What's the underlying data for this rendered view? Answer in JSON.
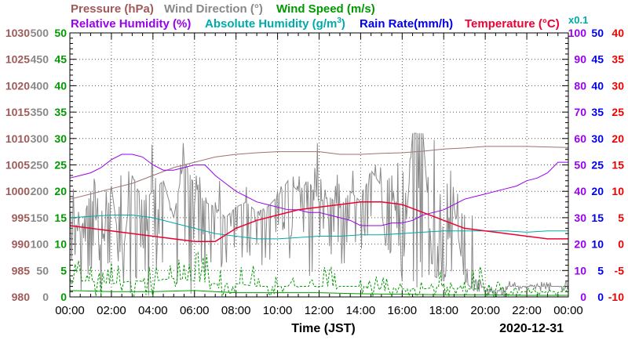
{
  "chart_data": {
    "type": "line",
    "x_axis": {
      "label": "Time (JST)",
      "date": "2020-12-31",
      "range_hours": [
        0,
        24
      ],
      "tick_labels": [
        "00:00",
        "02:00",
        "04:00",
        "06:00",
        "08:00",
        "10:00",
        "12:00",
        "14:00",
        "16:00",
        "18:00",
        "20:00",
        "22:00",
        "00:00"
      ],
      "minor_ticks_per_major": 4
    },
    "titles": {
      "pressure": "Pressure (hPa)",
      "wind_direction": "Wind Direction (°)",
      "wind_speed": "Wind Speed (m/s)",
      "humidity": "Relative Humidity (%)",
      "abs_humidity_prefix": "Absolute Humidity (g/m",
      "abs_humidity_sup": "3",
      "abs_humidity_suffix": ")",
      "rain": "Rain Rate(mm/h)",
      "temperature": "Temperature (°C)",
      "abs_scale_note": "x0.1"
    },
    "left_axes": [
      {
        "name": "Pressure",
        "unit": "hPa",
        "color": "#a05a5a",
        "range": [
          980,
          1030
        ],
        "tick_labels": [
          "980",
          "985",
          "990",
          "995",
          "1000",
          "1005",
          "1010",
          "1015",
          "1020",
          "1025",
          "1030"
        ]
      },
      {
        "name": "Wind Direction",
        "unit": "°",
        "color": "#888888",
        "range": [
          0,
          500
        ],
        "tick_labels": [
          "0",
          "50",
          "100",
          "150",
          "200",
          "250",
          "300",
          "350",
          "400",
          "450",
          "500"
        ]
      },
      {
        "name": "Wind Speed",
        "unit": "m/s",
        "color": "#009900",
        "range": [
          0,
          50
        ],
        "tick_labels": [
          "0",
          "5",
          "10",
          "15",
          "20",
          "25",
          "30",
          "35",
          "40",
          "45",
          "50"
        ]
      }
    ],
    "right_axes": [
      {
        "name": "Relative Humidity",
        "unit": "%",
        "color": "#9900ee",
        "range": [
          0,
          100
        ],
        "tick_labels": [
          "0",
          "10",
          "20",
          "30",
          "40",
          "50",
          "60",
          "70",
          "80",
          "90",
          "100"
        ]
      },
      {
        "name": "Rain Rate",
        "unit": "mm/h",
        "color": "#0000ee",
        "range": [
          0,
          50
        ],
        "tick_labels": [
          "0",
          "5",
          "10",
          "15",
          "20",
          "25",
          "30",
          "35",
          "40",
          "45",
          "50"
        ]
      },
      {
        "name": "Temperature",
        "unit": "°C",
        "color": "#ee0000",
        "range": [
          -10,
          40
        ],
        "tick_labels": [
          "-10",
          "-5",
          "0",
          "5",
          "10",
          "15",
          "20",
          "25",
          "30",
          "35",
          "40"
        ]
      }
    ],
    "grid": "dotted",
    "series": [
      {
        "name": "Pressure",
        "axis": "pressure",
        "color": "#a07070",
        "x": [
          0,
          1,
          2,
          3,
          4,
          5,
          6,
          7,
          8,
          9,
          10,
          11,
          12,
          13,
          14,
          15,
          16,
          17,
          18,
          19,
          20,
          21,
          22,
          23,
          24
        ],
        "y": [
          998.5,
          999.5,
          1000.5,
          1001.5,
          1003,
          1004.5,
          1005.5,
          1006.5,
          1007,
          1007.3,
          1007.5,
          1007.5,
          1007.5,
          1007,
          1007,
          1007.2,
          1007.3,
          1007.6,
          1008,
          1008.2,
          1008.5,
          1008.5,
          1008.5,
          1008.4,
          1008.3
        ]
      },
      {
        "name": "Wind Direction",
        "axis": "wind_direction",
        "color": "#888888",
        "style": "noisy",
        "x": [
          0,
          0.5,
          1,
          1.5,
          2,
          2.5,
          3,
          3.5,
          4,
          4.5,
          5,
          5.5,
          6,
          6.5,
          7,
          7.5,
          8,
          8.5,
          9,
          9.5,
          10,
          10.5,
          11,
          11.5,
          12,
          12.5,
          13,
          13.5,
          14,
          14.5,
          15,
          15.5,
          16,
          16.5,
          17,
          17.5,
          18,
          18.5,
          19,
          19.5,
          20,
          20.5,
          21,
          21.5,
          22,
          22.5,
          23,
          23.5,
          24
        ],
        "y": [
          160,
          120,
          200,
          90,
          210,
          60,
          230,
          180,
          200,
          220,
          150,
          260,
          210,
          180,
          170,
          150,
          170,
          180,
          160,
          170,
          190,
          220,
          200,
          220,
          180,
          190,
          170,
          200,
          180,
          240,
          210,
          230,
          30,
          310,
          310,
          40,
          30,
          170,
          30,
          10,
          10,
          10,
          20,
          20,
          20,
          20,
          20,
          20,
          20
        ],
        "range_low": [
          20,
          0,
          20,
          0,
          20,
          0,
          30,
          0,
          40,
          0,
          0,
          0,
          30,
          40,
          40,
          40,
          60,
          70,
          60,
          70,
          80,
          40,
          80,
          40,
          60,
          80,
          60,
          80,
          60,
          80,
          70,
          90,
          0,
          0,
          0,
          0,
          0,
          0,
          0,
          0,
          0,
          0,
          10,
          10,
          10,
          10,
          10,
          10,
          10
        ],
        "range_high": [
          230,
          250,
          240,
          240,
          240,
          300,
          260,
          310,
          250,
          330,
          330,
          280,
          250,
          240,
          230,
          200,
          230,
          230,
          220,
          240,
          270,
          270,
          270,
          300,
          240,
          260,
          230,
          260,
          240,
          290,
          250,
          270,
          300,
          310,
          310,
          330,
          260,
          210,
          180,
          40,
          20,
          20,
          30,
          30,
          30,
          30,
          30,
          30,
          30
        ]
      },
      {
        "name": "Wind Speed",
        "axis": "wind_speed",
        "color": "#009900",
        "style": "dashed",
        "x": [
          0,
          1,
          2,
          3,
          4,
          5,
          6,
          7,
          8,
          9,
          10,
          11,
          12,
          13,
          14,
          15,
          16,
          17,
          18,
          19,
          20,
          21,
          22,
          23,
          24
        ],
        "y": [
          3,
          3,
          2.5,
          3,
          3,
          3.5,
          3,
          2.5,
          2.5,
          2,
          2,
          2,
          2,
          2,
          2,
          2,
          1.5,
          1.5,
          2,
          1.5,
          1.5,
          1,
          1,
          1,
          1
        ],
        "range_high": [
          7,
          6,
          8,
          6,
          7,
          8,
          9,
          6,
          6,
          5,
          5,
          4,
          7,
          4,
          5,
          4,
          3,
          5,
          3,
          6,
          3,
          2,
          2,
          2,
          2
        ]
      },
      {
        "name": "Wind Speed (avg)",
        "axis": "wind_speed",
        "color": "#009900",
        "x": [
          0,
          2,
          4,
          6,
          8,
          10,
          12,
          14,
          16,
          18,
          20,
          22,
          24
        ],
        "y": [
          1.2,
          1,
          1,
          1.2,
          0.8,
          0.8,
          0.8,
          0.6,
          0.5,
          0.4,
          0.4,
          0.3,
          0.3
        ]
      },
      {
        "name": "Relative Humidity",
        "axis": "humidity",
        "color": "#9900ee",
        "x": [
          0,
          0.5,
          1,
          1.5,
          2,
          2.5,
          3,
          3.5,
          4,
          4.5,
          5,
          5.5,
          6,
          6.5,
          7,
          7.5,
          8,
          8.5,
          9,
          9.5,
          10,
          10.5,
          11,
          11.5,
          12,
          12.5,
          13,
          13.5,
          14,
          14.5,
          15,
          15.5,
          16,
          16.5,
          17,
          17.5,
          18,
          18.5,
          19,
          19.5,
          20,
          20.5,
          21,
          21.5,
          22,
          22.5,
          23,
          23.5,
          24
        ],
        "y": [
          45,
          46,
          47,
          49,
          52,
          54,
          54,
          53,
          50,
          48,
          48,
          49,
          50,
          50,
          46,
          43,
          40,
          38,
          36,
          35,
          34,
          33,
          33,
          32,
          32,
          31,
          30,
          29,
          27,
          27,
          27,
          28,
          28,
          29,
          31,
          32,
          33,
          35,
          37,
          38,
          39,
          40,
          41,
          42,
          44,
          45,
          47,
          51,
          51
        ]
      },
      {
        "name": "Absolute Humidity",
        "axis": "humidity",
        "color": "#00aaaa",
        "x": [
          0,
          1,
          2,
          3,
          4,
          5,
          6,
          7,
          8,
          9,
          10,
          11,
          12,
          13,
          14,
          15,
          16,
          17,
          18,
          19,
          20,
          21,
          22,
          23,
          24
        ],
        "y": [
          30,
          30.5,
          31,
          31,
          30,
          28,
          26,
          24,
          23,
          22,
          22,
          22.5,
          23,
          23,
          23.5,
          23.5,
          24,
          24.5,
          25,
          25,
          25,
          25,
          24.5,
          25,
          25
        ]
      },
      {
        "name": "Rain Rate",
        "axis": "rain",
        "color": "#0000ee",
        "x": [
          0,
          24
        ],
        "y": [
          0,
          0
        ]
      },
      {
        "name": "Temperature",
        "axis": "temperature",
        "color": "#ee0033",
        "x": [
          0,
          1,
          2,
          3,
          4,
          5,
          6,
          7,
          8,
          9,
          10,
          11,
          12,
          13,
          14,
          15,
          16,
          17,
          18,
          19,
          20,
          21,
          22,
          23,
          24
        ],
        "y": [
          3.5,
          3,
          2.5,
          2,
          1.5,
          1,
          0.5,
          0.5,
          3,
          4.5,
          5.5,
          6.5,
          7,
          7.5,
          8,
          8,
          7.5,
          6,
          4.5,
          3,
          2.5,
          2,
          1.5,
          1,
          1
        ]
      }
    ]
  }
}
